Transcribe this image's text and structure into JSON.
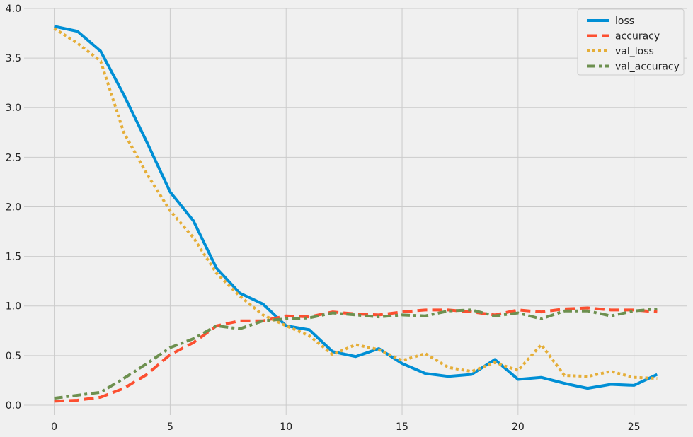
{
  "chart_data": {
    "type": "line",
    "title": "",
    "xlabel": "",
    "ylabel": "",
    "xlim": [
      -1.3,
      27.3
    ],
    "ylim": [
      -0.1,
      4.0
    ],
    "xticks": [
      0,
      5,
      10,
      15,
      20,
      25
    ],
    "yticks": [
      0.0,
      0.5,
      1.0,
      1.5,
      2.0,
      2.5,
      3.0,
      3.5,
      4.0
    ],
    "grid": true,
    "legend_position": "top-right",
    "x": [
      0,
      1,
      2,
      3,
      4,
      5,
      6,
      7,
      8,
      9,
      10,
      11,
      12,
      13,
      14,
      15,
      16,
      17,
      18,
      19,
      20,
      21,
      22,
      23,
      24,
      25,
      26
    ],
    "series": [
      {
        "name": "loss",
        "color": "#008fd5",
        "style": "solid",
        "values": [
          3.82,
          3.77,
          3.57,
          3.13,
          2.65,
          2.15,
          1.86,
          1.38,
          1.13,
          1.02,
          0.8,
          0.76,
          0.54,
          0.49,
          0.57,
          0.42,
          0.32,
          0.29,
          0.31,
          0.46,
          0.26,
          0.28,
          0.22,
          0.17,
          0.21,
          0.2,
          0.31
        ]
      },
      {
        "name": "accuracy",
        "color": "#fc4f30",
        "style": "dashed",
        "values": [
          0.04,
          0.05,
          0.08,
          0.17,
          0.31,
          0.51,
          0.63,
          0.8,
          0.85,
          0.85,
          0.9,
          0.89,
          0.94,
          0.92,
          0.91,
          0.94,
          0.96,
          0.96,
          0.94,
          0.91,
          0.96,
          0.94,
          0.97,
          0.98,
          0.96,
          0.96,
          0.94
        ]
      },
      {
        "name": "val_loss",
        "color": "#e5ae38",
        "style": "dotted",
        "values": [
          3.8,
          3.65,
          3.47,
          2.75,
          2.33,
          1.96,
          1.69,
          1.33,
          1.1,
          0.91,
          0.8,
          0.7,
          0.51,
          0.61,
          0.56,
          0.45,
          0.52,
          0.38,
          0.34,
          0.43,
          0.35,
          0.61,
          0.3,
          0.29,
          0.34,
          0.28,
          0.27
        ]
      },
      {
        "name": "val_accuracy",
        "color": "#6d904f",
        "style": "dashdot",
        "values": [
          0.07,
          0.1,
          0.13,
          0.27,
          0.42,
          0.58,
          0.67,
          0.8,
          0.77,
          0.85,
          0.87,
          0.88,
          0.93,
          0.91,
          0.89,
          0.91,
          0.9,
          0.95,
          0.96,
          0.9,
          0.93,
          0.87,
          0.95,
          0.95,
          0.9,
          0.95,
          0.97
        ]
      }
    ]
  }
}
